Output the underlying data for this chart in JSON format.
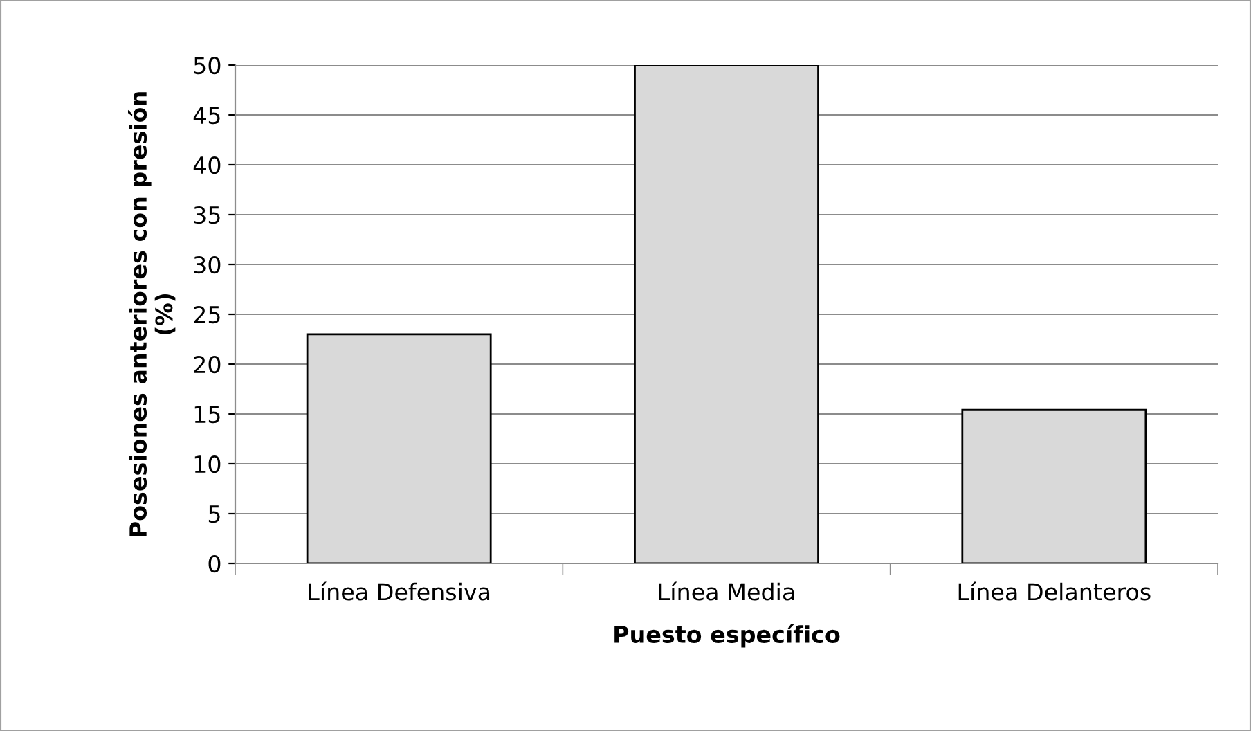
{
  "chart_data": {
    "type": "bar",
    "xlabel": "Puesto específico",
    "ylabel": "Posesiones anteriores con presión\n(%)",
    "categories": [
      "Línea Defensiva",
      "Línea Media",
      "Línea Delanteros"
    ],
    "values": [
      23,
      50,
      15.4
    ],
    "color": "#d9d9d9",
    "ylim": [
      0,
      50
    ],
    "yticks": [
      0,
      5,
      10,
      15,
      20,
      25,
      30,
      35,
      40,
      45,
      50
    ],
    "grid": "y",
    "legend": false
  }
}
